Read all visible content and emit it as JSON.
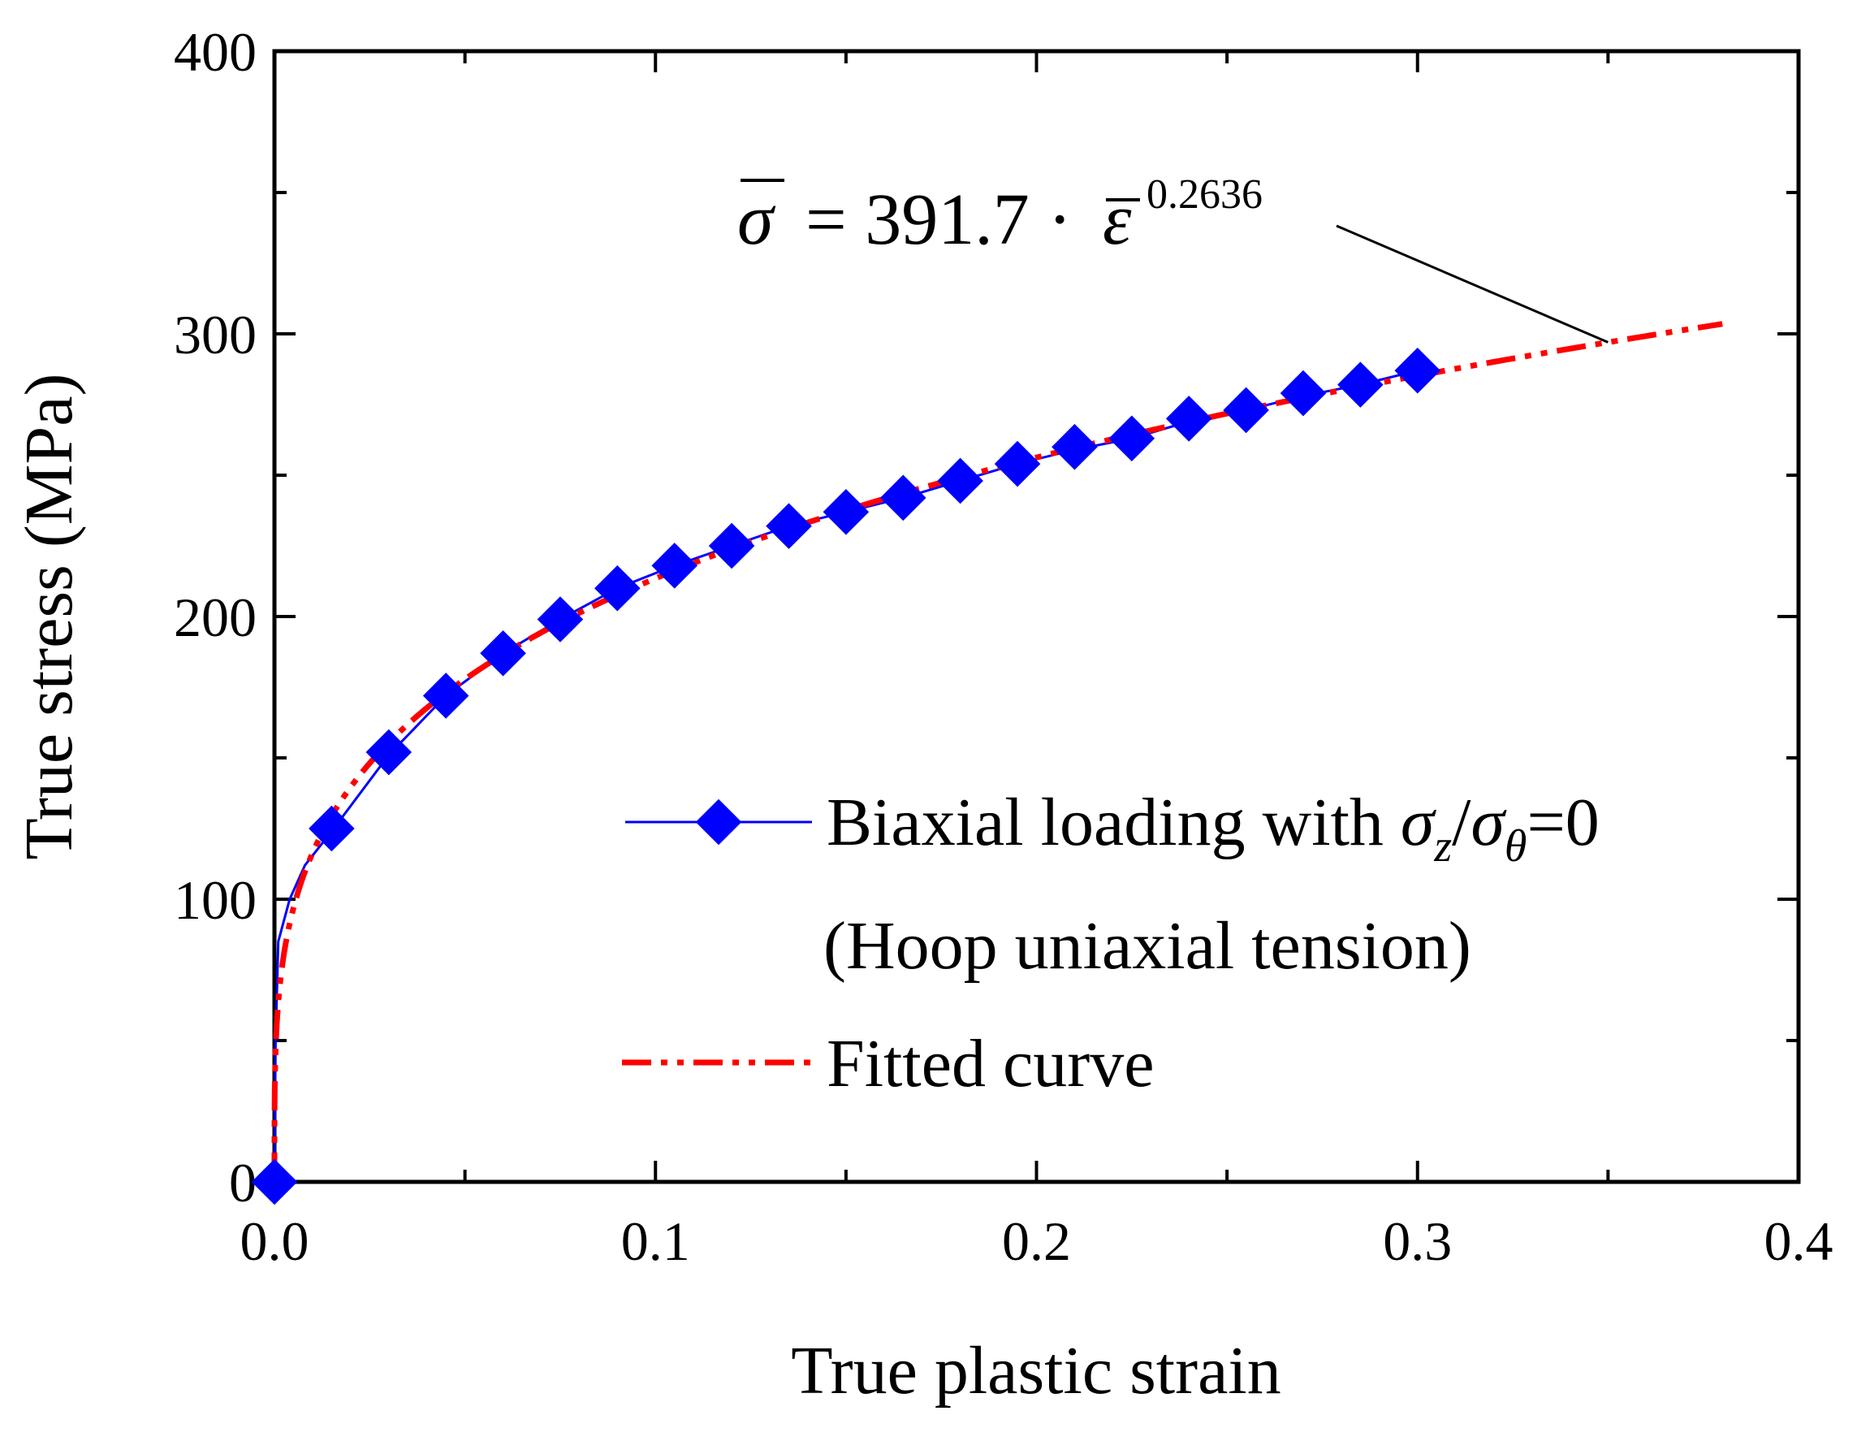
{
  "chart_data": {
    "type": "line",
    "xlabel": "True plastic strain",
    "ylabel": "True stress (MPa)",
    "xlim": [
      0.0,
      0.4
    ],
    "ylim": [
      0,
      400
    ],
    "x_ticks": [
      "0.0",
      "0.1",
      "0.2",
      "0.3",
      "0.4"
    ],
    "y_ticks": [
      "0",
      "100",
      "200",
      "300",
      "400"
    ],
    "grid": false,
    "legend_position": "center-right",
    "series": [
      {
        "name": "Biaxial loading with σz/σθ=0 (Hoop uniaxial tension)",
        "style": "solid line with diamond markers",
        "color": "#0000ff",
        "curve": {
          "x": [
            0.0,
            0.0003,
            0.001,
            0.002,
            0.004,
            0.008,
            0.015,
            0.03,
            0.045,
            0.06,
            0.075,
            0.09,
            0.105,
            0.12,
            0.135,
            0.15,
            0.165,
            0.18,
            0.195,
            0.21,
            0.225,
            0.24,
            0.255,
            0.27,
            0.285,
            0.3
          ],
          "y": [
            0,
            50,
            85,
            90,
            100,
            112,
            124,
            151,
            172,
            187,
            199,
            210,
            218,
            225,
            232,
            237,
            242,
            248,
            254,
            259,
            263,
            269,
            273,
            278,
            282,
            287
          ]
        },
        "markers": {
          "x": [
            0.0,
            0.015,
            0.03,
            0.045,
            0.06,
            0.075,
            0.09,
            0.105,
            0.12,
            0.135,
            0.15,
            0.165,
            0.18,
            0.195,
            0.21,
            0.225,
            0.24,
            0.255,
            0.27,
            0.285,
            0.3
          ],
          "y": [
            0,
            125,
            152,
            172,
            187,
            199,
            210,
            218,
            225,
            232,
            237,
            242,
            248,
            254,
            260,
            263,
            270,
            273,
            279,
            282,
            287
          ]
        }
      },
      {
        "name": "Fitted curve",
        "style": "dash-dot",
        "color": "#ff0000",
        "formula": {
          "a": 391.7,
          "n": 0.2636,
          "x_start": 0.0,
          "x_end": 0.38
        }
      }
    ],
    "annotation": {
      "prefix": "= 391.7 ·",
      "exponent": "0.2636",
      "pointer_to_x": 0.35
    },
    "legend": {
      "entry1_line1_before": "Biaxial loading with ",
      "entry1_sigma": "σ",
      "entry1_sub1": "z",
      "entry1_slash": "/",
      "entry1_sub2": "θ",
      "entry1_after": "=0",
      "entry1_line2": "(Hoop uniaxial tension)",
      "entry2": "Fitted curve"
    }
  }
}
